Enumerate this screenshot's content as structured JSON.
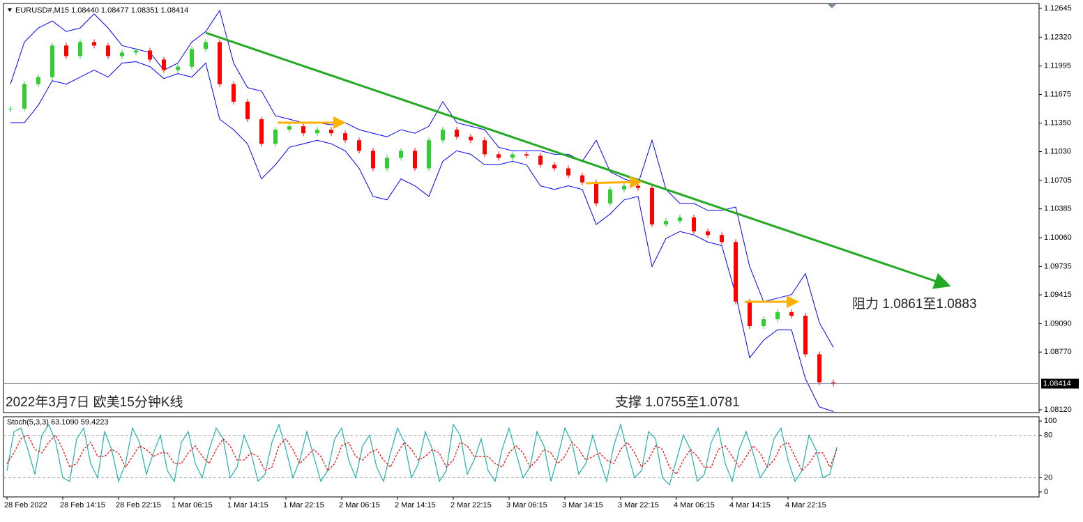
{
  "chart_data": [
    {
      "type": "candlestick",
      "header": "EURUSD#,M15  1.08440 1.08477 1.08351 1.08414",
      "annotations": [
        "2022年3月7日 欧美15分钟K线",
        "阻力 1.0861至1.0883",
        "支撑 1.0755至1.0781"
      ],
      "values": [
        1.11514,
        1.11791,
        1.1187,
        1.12226,
        1.12107,
        1.12265,
        1.12226,
        1.12107,
        1.12147,
        1.1217,
        1.12068,
        1.11949,
        1.11988,
        1.12186,
        1.12265,
        1.11791,
        1.11593,
        1.11395,
        1.11118,
        1.11277,
        1.11316,
        1.11237,
        1.11277,
        1.11237,
        1.11158,
        1.11039,
        1.10842,
        1.1096,
        1.11039,
        1.10842,
        1.11158,
        1.11277,
        1.11197,
        1.11158,
        1.11,
        1.1096,
        1.11,
        1.10984,
        1.10881,
        1.10842,
        1.10762,
        1.10683,
        1.10446,
        1.10604,
        1.10644,
        1.1062,
        1.10209,
        1.10248,
        1.10288,
        1.1013,
        1.1009,
        1.10011,
        1.09339,
        1.09062,
        1.09141,
        1.0922,
        1.0918,
        1.08745,
        1.08429,
        1.08414
      ],
      "upper_band": [
        1.11791,
        1.12265,
        1.12424,
        1.12503,
        1.12384,
        1.12424,
        1.12582,
        1.12424,
        1.12226,
        1.12186,
        1.12147,
        1.11949,
        1.12028,
        1.12265,
        1.12384,
        1.12621,
        1.12028,
        1.11751,
        1.11712,
        1.11435,
        1.11395,
        1.11356,
        1.11356,
        1.11332,
        1.11356,
        1.11277,
        1.11237,
        1.11197,
        1.11277,
        1.11237,
        1.11316,
        1.11593,
        1.11356,
        1.11316,
        1.11277,
        1.11079,
        1.11039,
        1.11039,
        1.11039,
        1.11,
        1.11,
        1.10921,
        1.11158,
        1.10802,
        1.10723,
        1.10667,
        1.11158,
        1.10604,
        1.10446,
        1.10446,
        1.10367,
        1.10367,
        1.10406,
        1.09734,
        1.09339,
        1.09378,
        1.09418,
        1.09655,
        1.09101,
        1.08824
      ],
      "lower_band": [
        1.11356,
        1.11356,
        1.11553,
        1.1183,
        1.11791,
        1.1187,
        1.11949,
        1.1187,
        1.12028,
        1.12044,
        1.11988,
        1.11854,
        1.11909,
        1.1187,
        1.12028,
        1.11395,
        1.11277,
        1.11118,
        1.10723,
        1.10881,
        1.11079,
        1.11118,
        1.11158,
        1.11118,
        1.11039,
        1.10842,
        1.10525,
        1.10486,
        1.10723,
        1.10644,
        1.10525,
        1.10921,
        1.11039,
        1.11,
        1.10881,
        1.10881,
        1.10921,
        1.10881,
        1.10644,
        1.10604,
        1.10644,
        1.10604,
        1.10209,
        1.10327,
        1.10486,
        1.10525,
        1.09734,
        1.10051,
        1.1013,
        1.1009,
        1.10011,
        1.09971,
        1.09418,
        1.08706,
        1.08904,
        1.09022,
        1.09022,
        1.08469,
        1.08152,
        1.081
      ],
      "up_color": "#32cd32",
      "down_color": "#ff0000",
      "band_color": "#0000ff",
      "current_price": 1.08414,
      "ylim": [
        1.08088,
        1.127
      ],
      "yticks": [
        1.12645,
        {
          "value": 1.1232,
          "label": "1.12320"
        },
        1.11995,
        1.11675,
        {
          "value": 1.1135,
          "label": "1.11350"
        },
        {
          "value": 1.1103,
          "label": "1.11030"
        },
        1.10705,
        1.10385,
        {
          "value": 1.1006,
          "label": "1.10060"
        },
        1.09735,
        1.09415,
        {
          "value": 1.0909,
          "label": "1.09090"
        },
        {
          "value": 1.0877,
          "label": "1.08770"
        },
        {
          "value": 1.0812,
          "label": "1.08120"
        }
      ]
    },
    {
      "type": "line",
      "title": "Stoch(5,3,3) 63.1090 59.4223",
      "categories": [
        "28 Feb 2022",
        null,
        null,
        null,
        null,
        null,
        null,
        null,
        "28 Feb 14:15",
        null,
        null,
        null,
        null,
        null,
        null,
        null,
        "28 Feb 22:15",
        null,
        null,
        null,
        null,
        null,
        null,
        null,
        "1 Mar 06:15",
        null,
        null,
        null,
        null,
        null,
        null,
        null,
        "1 Mar 14:15",
        null,
        null,
        null,
        null,
        null,
        null,
        null,
        "1 Mar 22:15",
        null,
        null,
        null,
        null,
        null,
        null,
        null,
        "2 Mar 06:15",
        null,
        null,
        null,
        null,
        null,
        null,
        null,
        "2 Mar 14:15",
        null,
        null,
        null,
        null,
        null,
        null,
        null,
        "2 Mar 22:15",
        null,
        null,
        null,
        null,
        null,
        null,
        null,
        "3 Mar 06:15",
        null,
        null,
        null,
        null,
        null,
        null,
        null,
        "3 Mar 14:15",
        null,
        null,
        null,
        null,
        null,
        null,
        null,
        "3 Mar 22:15",
        null,
        null,
        null,
        null,
        null,
        null,
        null,
        "4 Mar 06:15",
        null,
        null,
        null,
        null,
        null,
        null,
        null,
        "4 Mar 14:15",
        null,
        null,
        null,
        null,
        null,
        null,
        null,
        "4 Mar 22:15",
        null,
        null,
        null,
        null,
        null,
        null,
        null
      ],
      "series": [
        {
          "color": "#20b2aa",
          "dashed": false,
          "values": [
            30,
            85,
            90,
            60,
            25,
            80,
            95,
            70,
            20,
            15,
            75,
            90,
            40,
            20,
            85,
            60,
            15,
            40,
            90,
            70,
            25,
            55,
            80,
            30,
            15,
            70,
            85,
            40,
            20,
            60,
            90,
            75,
            20,
            35,
            80,
            55,
            15,
            25,
            70,
            95,
            60,
            20,
            45,
            85,
            50,
            15,
            30,
            75,
            90,
            45,
            20,
            65,
            80,
            35,
            15,
            55,
            90,
            70,
            20,
            40,
            85,
            60,
            15,
            30,
            95,
            80,
            25,
            45,
            75,
            30,
            15,
            60,
            90,
            55,
            20,
            35,
            85,
            65,
            15,
            50,
            90,
            70,
            25,
            40,
            80,
            45,
            15,
            65,
            95,
            55,
            20,
            30,
            85,
            75,
            20,
            10,
            45,
            80,
            60,
            15,
            25,
            70,
            90,
            40,
            15,
            60,
            85,
            55,
            20,
            35,
            75,
            90,
            45,
            15,
            30,
            80,
            60,
            20,
            25,
            63.109
          ]
        },
        {
          "color": "#ff0000",
          "dashed": true,
          "values": [
            40,
            55,
            75,
            80,
            60,
            55,
            70,
            80,
            60,
            35,
            40,
            60,
            70,
            50,
            50,
            60,
            55,
            35,
            50,
            65,
            60,
            50,
            55,
            55,
            40,
            40,
            55,
            65,
            50,
            40,
            60,
            75,
            65,
            45,
            45,
            55,
            50,
            30,
            35,
            65,
            75,
            60,
            40,
            50,
            60,
            50,
            30,
            40,
            65,
            70,
            50,
            45,
            55,
            60,
            45,
            35,
            55,
            70,
            60,
            45,
            50,
            60,
            55,
            35,
            45,
            70,
            65,
            50,
            50,
            50,
            40,
            35,
            55,
            65,
            55,
            35,
            45,
            60,
            55,
            40,
            50,
            70,
            60,
            45,
            50,
            55,
            45,
            40,
            60,
            70,
            55,
            35,
            45,
            65,
            60,
            35,
            25,
            45,
            60,
            50,
            35,
            35,
            60,
            65,
            50,
            35,
            50,
            65,
            55,
            35,
            45,
            65,
            70,
            50,
            30,
            40,
            55,
            55,
            35,
            59.4223
          ]
        }
      ],
      "ylim": [
        -7,
        106
      ],
      "yticks": [
        100,
        80,
        20,
        0
      ],
      "level_lines": [
        80,
        20
      ]
    }
  ]
}
